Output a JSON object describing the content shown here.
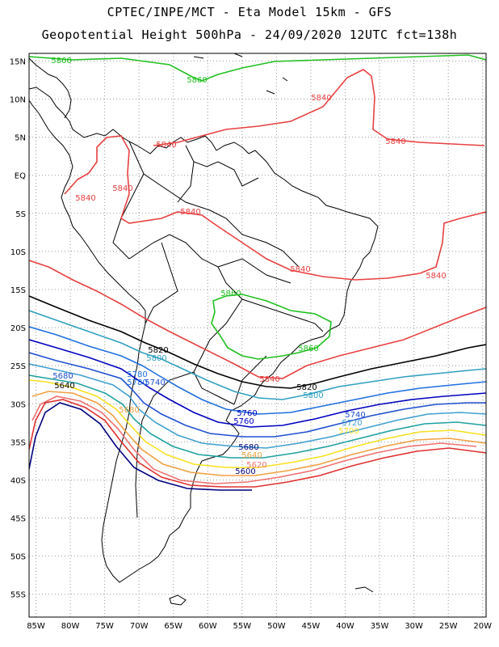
{
  "header": {
    "line1": "CPTEC/INPE/MCT -  Eta Model 15km - GFS",
    "line2": "Geopotential Height 500hPa - 24/09/2020 12UTC fct=138h"
  },
  "axes": {
    "lat_labels": [
      "15N",
      "10N",
      "5N",
      "EQ",
      "5S",
      "10S",
      "15S",
      "20S",
      "25S",
      "30S",
      "35S",
      "40S",
      "45S",
      "50S",
      "55S"
    ],
    "lat_values": [
      15,
      10,
      5,
      0,
      -5,
      -10,
      -15,
      -20,
      -25,
      -30,
      -35,
      -40,
      -45,
      -50,
      -55
    ],
    "lon_labels": [
      "85W",
      "80W",
      "75W",
      "70W",
      "65W",
      "60W",
      "55W",
      "50W",
      "45W",
      "40W",
      "35W",
      "30W",
      "25W",
      "20W"
    ],
    "lon_values": [
      -85,
      -80,
      -75,
      -70,
      -65,
      -60,
      -55,
      -50,
      -45,
      -40,
      -35,
      -30,
      -25,
      -20
    ],
    "lon_range": [
      -86,
      -19.5
    ],
    "lat_range": [
      -58,
      16
    ],
    "grid": "dotted"
  },
  "colors": {
    "c5560": "#00007f",
    "c5600": "#e03030",
    "c5620": "#f07070",
    "c5640": "#f0a040",
    "c5680": "#f8e020",
    "c5700": "#1fa0a0",
    "c5720": "#40a0d0",
    "c5740": "#2050d0",
    "c5760": "#0000c0",
    "c5780": "#2070e0",
    "c5800": "#30a0c0",
    "c5820": "#000000",
    "c5840": "#e84040",
    "c5860": "#20c020",
    "coast": "#000000"
  },
  "contour_labels": [
    {
      "text": "5860",
      "color": "c5860"
    },
    {
      "text": "5860",
      "color": "c5860"
    },
    {
      "text": "5840",
      "color": "c5840"
    },
    {
      "text": "5840",
      "color": "c5840"
    },
    {
      "text": "5840",
      "color": "c5840"
    },
    {
      "text": "5840",
      "color": "c5840"
    },
    {
      "text": "5840",
      "color": "c5840"
    },
    {
      "text": "5840",
      "color": "c5840"
    },
    {
      "text": "5840",
      "color": "c5840"
    },
    {
      "text": "5840",
      "color": "c5840"
    },
    {
      "text": "5860",
      "color": "c5860"
    },
    {
      "text": "5860",
      "color": "c5860"
    },
    {
      "text": "5840",
      "color": "c5840"
    },
    {
      "text": "5820",
      "color": "c5820"
    },
    {
      "text": "5820",
      "color": "c5820"
    },
    {
      "text": "5800",
      "color": "c5800"
    },
    {
      "text": "5800",
      "color": "c5800"
    },
    {
      "text": "5780",
      "color": "c5780"
    },
    {
      "text": "5780",
      "color": "c5780"
    },
    {
      "text": "5740",
      "color": "c5740"
    },
    {
      "text": "5680",
      "color": "c5740"
    },
    {
      "text": "5640",
      "color": "c5820"
    },
    {
      "text": "5680",
      "color": "c5640"
    },
    {
      "text": "5760",
      "color": "c5760"
    },
    {
      "text": "5760",
      "color": "c5760"
    },
    {
      "text": "5740",
      "color": "c5740"
    },
    {
      "text": "5720",
      "color": "c5720"
    },
    {
      "text": "5700",
      "color": "c5680"
    },
    {
      "text": "5680",
      "color": "c5560"
    },
    {
      "text": "5640",
      "color": "c5640"
    },
    {
      "text": "5620",
      "color": "c5620"
    },
    {
      "text": "5600",
      "color": "c5560"
    }
  ]
}
